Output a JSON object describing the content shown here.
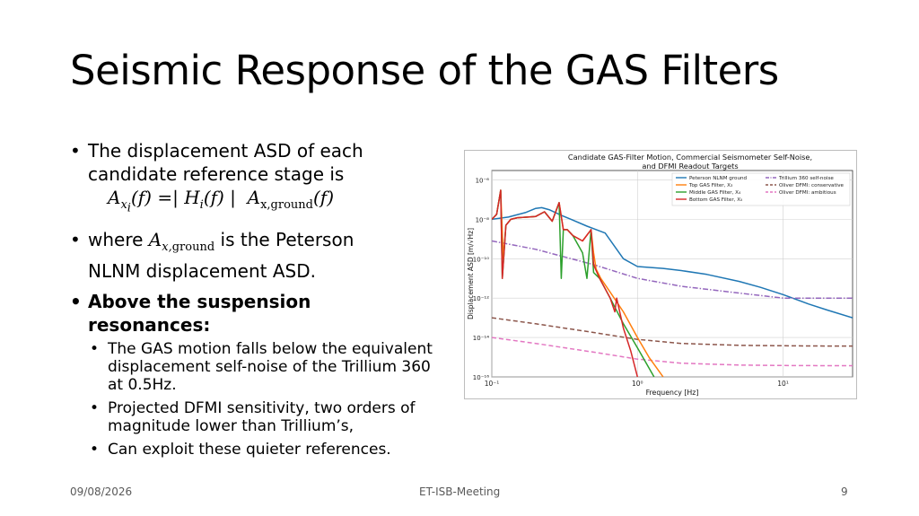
{
  "slide": {
    "title": "Seismic Response of the GAS Filters",
    "bullet1_line1": "The displacement ASD of each",
    "bullet1_line2": "candidate reference stage is",
    "bullet2_pre": "where",
    "bullet2_post": "is the Peterson",
    "bullet2_line2": "NLNM displacement ASD.",
    "bullet3_line1": "Above the suspension",
    "bullet3_line2": "resonances:",
    "sub_bullets": [
      "The GAS motion falls below the equivalent displacement self-noise of the Trillium 360 at 0.5Hz.",
      "Projected DFMI sensitivity, two orders of magnitude lower than Trillium’s,",
      "Can exploit these quieter references."
    ]
  },
  "footer": {
    "date": "09/08/2026",
    "event": "ET-ISB-Meeting",
    "page": "9"
  },
  "chart_data": {
    "type": "line",
    "title": "Candidate GAS-Filter Motion, Commercial Seismometer Self-Noise,",
    "subtitle": "and DFMI Readout Targets",
    "xlabel": "Frequency [Hz]",
    "ylabel": "Displacement ASD [m/√Hz]",
    "xscale": "log",
    "yscale": "log",
    "xlim": [
      0.1,
      30
    ],
    "ylim": [
      1e-16,
      3e-06
    ],
    "grid": true,
    "legend_position": "top-right",
    "xticks": [
      {
        "value": 0.1,
        "label": "10⁻¹"
      },
      {
        "value": 1,
        "label": "10⁰"
      },
      {
        "value": 10,
        "label": "10¹"
      }
    ],
    "yticks": [
      {
        "value": 1e-06,
        "label": "10⁻⁶"
      },
      {
        "value": 1e-08,
        "label": "10⁻⁸"
      },
      {
        "value": 1e-10,
        "label": "10⁻¹⁰"
      },
      {
        "value": 1e-12,
        "label": "10⁻¹²"
      },
      {
        "value": 1e-14,
        "label": "10⁻¹⁴"
      },
      {
        "value": 1e-16,
        "label": "10⁻¹⁶"
      }
    ],
    "series": [
      {
        "name": "Peterson NLNM ground",
        "color": "#1f77b4",
        "dash": "solid",
        "x": [
          0.1,
          0.13,
          0.17,
          0.2,
          0.22,
          0.25,
          0.3,
          0.35,
          0.45,
          0.6,
          0.8,
          1.0,
          1.5,
          2,
          3,
          5,
          7,
          10,
          15,
          20,
          30
        ],
        "y": [
          1e-08,
          1.3e-08,
          2.2e-08,
          3.6e-08,
          3.9e-08,
          3e-08,
          1.6e-08,
          1e-08,
          4.5e-09,
          2e-09,
          1e-10,
          4e-11,
          3.2e-11,
          2.5e-11,
          1.6e-11,
          7e-12,
          3.5e-12,
          1.5e-12,
          5e-13,
          2.5e-13,
          1e-13
        ]
      },
      {
        "name": "Top GAS Filter, X₃",
        "color": "#ff7f0e",
        "dash": "solid",
        "x": [
          0.1,
          0.108,
          0.115,
          0.12,
          0.125,
          0.135,
          0.15,
          0.18,
          0.2,
          0.23,
          0.26,
          0.29,
          0.31,
          0.33,
          0.36,
          0.42,
          0.48,
          0.5,
          0.52,
          0.56,
          0.65,
          0.8,
          1.0,
          1.2,
          1.5
        ],
        "y": [
          1e-08,
          1.8e-08,
          3e-07,
          1e-10,
          5e-09,
          1e-08,
          1.2e-08,
          1.3e-08,
          1.4e-08,
          2.4e-08,
          8e-09,
          7e-08,
          3e-09,
          3e-09,
          1.5e-09,
          8e-10,
          3e-09,
          2e-10,
          3e-11,
          1e-11,
          2e-12,
          2e-13,
          1e-14,
          1e-15,
          1e-16
        ]
      },
      {
        "name": "Middle GAS Filter, X₄",
        "color": "#2ca02c",
        "dash": "solid",
        "x": [
          0.1,
          0.108,
          0.115,
          0.118,
          0.125,
          0.135,
          0.15,
          0.2,
          0.23,
          0.26,
          0.29,
          0.3,
          0.31,
          0.33,
          0.36,
          0.42,
          0.45,
          0.48,
          0.5,
          0.55,
          0.65,
          0.8,
          1.0,
          1.3
        ],
        "y": [
          1e-08,
          1.8e-08,
          3e-07,
          1e-11,
          5e-09,
          1e-08,
          1.2e-08,
          1.4e-08,
          2.4e-08,
          8e-09,
          7e-08,
          1e-11,
          3e-09,
          3e-09,
          1.5e-09,
          2e-10,
          1e-11,
          3e-09,
          2e-11,
          1e-11,
          1e-12,
          5e-14,
          3e-15,
          1e-16
        ]
      },
      {
        "name": "Bottom GAS Filter, X₅",
        "color": "#d62728",
        "dash": "solid",
        "x": [
          0.1,
          0.108,
          0.115,
          0.118,
          0.125,
          0.135,
          0.15,
          0.2,
          0.23,
          0.26,
          0.29,
          0.31,
          0.33,
          0.36,
          0.42,
          0.48,
          0.5,
          0.55,
          0.65,
          0.7,
          0.72,
          0.8,
          0.9,
          1.0
        ],
        "y": [
          1e-08,
          1.8e-08,
          3e-07,
          1e-11,
          5e-09,
          1e-08,
          1.2e-08,
          1.4e-08,
          2.4e-08,
          8e-09,
          7e-08,
          3e-09,
          3e-09,
          1.5e-09,
          8e-10,
          3e-09,
          5e-11,
          1e-11,
          1e-12,
          2e-13,
          1e-12,
          3e-14,
          2e-15,
          1e-16
        ]
      },
      {
        "name": "Trillium 360 self-noise",
        "color": "#9467bd",
        "dash": "dashdot",
        "x": [
          0.1,
          0.2,
          0.5,
          1,
          2,
          5,
          10,
          20,
          30
        ],
        "y": [
          8e-10,
          3e-10,
          5e-11,
          1e-11,
          4e-12,
          1.8e-12,
          1e-12,
          1e-12,
          1e-12
        ]
      },
      {
        "name": "Oliver DFMI: conservative",
        "color": "#8c564b",
        "dash": "dash",
        "x": [
          0.1,
          0.2,
          0.5,
          1,
          2,
          5,
          10,
          20,
          30
        ],
        "y": [
          1e-13,
          5e-14,
          1.8e-14,
          8e-15,
          5e-15,
          4e-15,
          3.8e-15,
          3.7e-15,
          3.7e-15
        ]
      },
      {
        "name": "Oliver DFMI: ambitious",
        "color": "#e377c2",
        "dash": "dash",
        "x": [
          0.1,
          0.2,
          0.5,
          1,
          2,
          5,
          10,
          20,
          30
        ],
        "y": [
          1e-14,
          5e-15,
          1.8e-15,
          8e-16,
          5e-16,
          4e-16,
          3.8e-16,
          3.7e-16,
          3.7e-16
        ]
      }
    ]
  }
}
